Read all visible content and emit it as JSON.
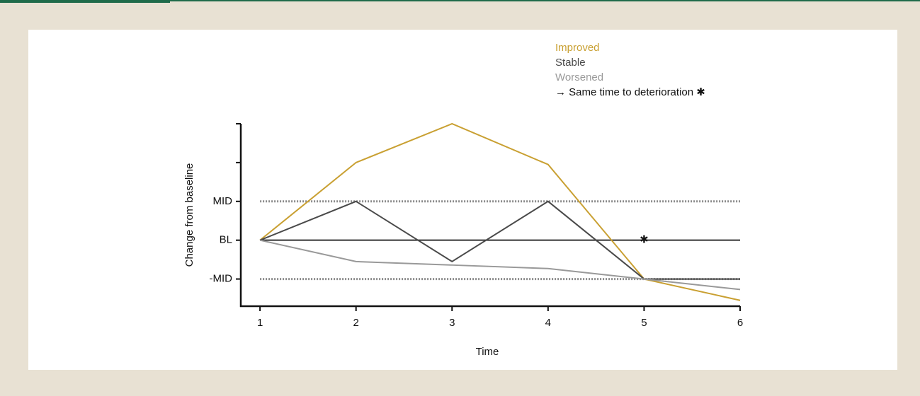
{
  "chart_data": {
    "type": "line",
    "xlabel": "Time",
    "ylabel": "Change from baseline",
    "x": [
      1,
      2,
      3,
      4,
      5,
      6
    ],
    "xlim": [
      0.8,
      6
    ],
    "xticks": [
      1,
      2,
      3,
      4,
      5,
      6
    ],
    "ylim": [
      -1.7,
      3
    ],
    "yticks": [
      {
        "value": -1,
        "label": "-MID"
      },
      {
        "value": 0,
        "label": "BL"
      },
      {
        "value": 1,
        "label": "MID"
      },
      {
        "value": 2,
        "label": null
      },
      {
        "value": 3,
        "label": null
      }
    ],
    "reference_lines": [
      {
        "y": 1,
        "style": "dotted",
        "color": "#8a8a8a"
      },
      {
        "y": 0,
        "style": "solid",
        "color": "#333333"
      },
      {
        "y": -1,
        "style": "dotted",
        "color": "#8a8a8a"
      }
    ],
    "series": [
      {
        "name": "Improved",
        "color": "#c9a032",
        "values": [
          0,
          2,
          3,
          1.95,
          -1,
          -1.55
        ]
      },
      {
        "name": "Stable",
        "color": "#4a4a4a",
        "values": [
          0,
          1,
          -0.55,
          1,
          -1,
          -1
        ]
      },
      {
        "name": "Worsened",
        "color": "#999999",
        "values": [
          0,
          -0.55,
          -0.64,
          -0.73,
          -1,
          -1.27
        ]
      }
    ],
    "legend_note": "→ Same time to deterioration ✱",
    "annotation": {
      "x": 5,
      "y": 0,
      "label": "✱"
    }
  }
}
